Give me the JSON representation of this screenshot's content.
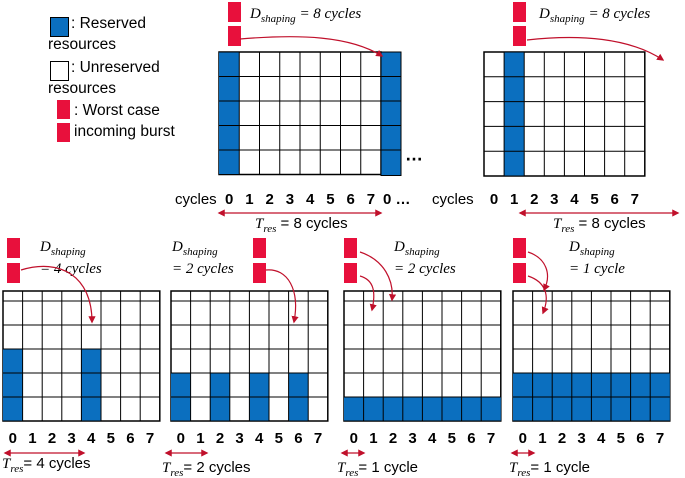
{
  "legend": {
    "reserved_label": ": Reserved",
    "reserved_label_2": "resources",
    "unreserved_label": ": Unreserved",
    "unreserved_label_2": "resources",
    "burst_label": ": Worst case",
    "burst_label_2": "incoming burst"
  },
  "colors": {
    "reserved": "#0b6fbf",
    "burst": "#e8103c",
    "grid": "#000000",
    "arrow": "#c0102b"
  },
  "common": {
    "cycles_word": "cycles",
    "ellipsis": "…",
    "ellipsis_bottom": "0 …",
    "d_symbol": "D",
    "d_sub": "shaping",
    "t_symbol": "T",
    "t_sub": "res"
  },
  "panels": [
    {
      "id": "p1",
      "d_rest": " = 8 cycles",
      "d_rest2": "",
      "t_rest": " = 8 cycles",
      "ticks": [
        "0",
        "1",
        "2",
        "3",
        "4",
        "5",
        "6",
        "7"
      ],
      "reserved_columns": [
        0
      ],
      "reserved_rows_from_bottom": 5
    },
    {
      "id": "p2",
      "d_rest": " = 8 cycles",
      "d_rest2": "",
      "t_rest": " = 8 cycles",
      "ticks": [
        "0",
        "1",
        "2",
        "3",
        "4",
        "5",
        "6",
        "7"
      ],
      "reserved_columns": [
        1
      ],
      "reserved_rows_from_bottom": 5
    },
    {
      "id": "p3",
      "d_rest": "",
      "d_rest2": "= 4 cycles",
      "t_rest": "= 4 cycles",
      "ticks": [
        "0",
        "1",
        "2",
        "3",
        "4",
        "5",
        "6",
        "7"
      ],
      "reserved_columns": [
        0,
        4
      ],
      "reserved_rows_from_bottom": 3
    },
    {
      "id": "p4",
      "d_rest": "",
      "d_rest2": "= 2 cycles",
      "t_rest": "= 2 cycles",
      "ticks": [
        "0",
        "1",
        "2",
        "3",
        "4",
        "5",
        "6",
        "7"
      ],
      "reserved_columns": [
        0,
        2,
        4,
        6
      ],
      "reserved_rows_from_bottom": 2
    },
    {
      "id": "p5",
      "d_rest": "",
      "d_rest2": "= 2 cycles",
      "t_rest": "= 1 cycle",
      "ticks": [
        "0",
        "1",
        "2",
        "3",
        "4",
        "5",
        "6",
        "7"
      ],
      "reserved_columns": [
        0,
        1,
        2,
        3,
        4,
        5,
        6,
        7
      ],
      "reserved_rows_from_bottom": 1
    },
    {
      "id": "p6",
      "d_rest": "",
      "d_rest2": "= 1 cycle",
      "t_rest": "= 1 cycle",
      "ticks": [
        "0",
        "1",
        "2",
        "3",
        "4",
        "5",
        "6",
        "7"
      ],
      "reserved_columns": [
        0,
        1,
        2,
        3,
        4,
        5,
        6,
        7
      ],
      "reserved_rows_from_bottom": 2
    }
  ]
}
